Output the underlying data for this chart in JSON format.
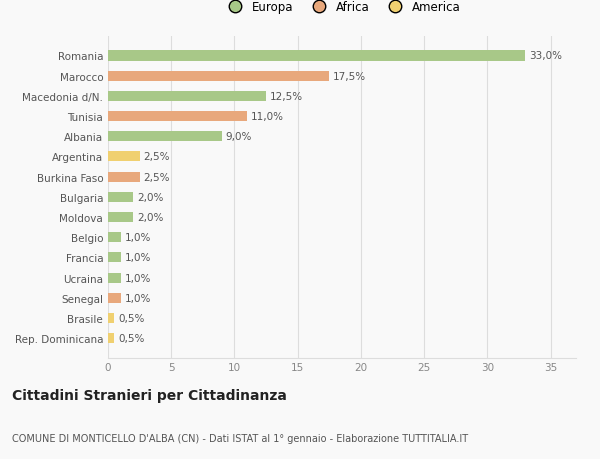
{
  "categories": [
    "Romania",
    "Marocco",
    "Macedonia d/N.",
    "Tunisia",
    "Albania",
    "Argentina",
    "Burkina Faso",
    "Bulgaria",
    "Moldova",
    "Belgio",
    "Francia",
    "Ucraina",
    "Senegal",
    "Brasile",
    "Rep. Dominicana"
  ],
  "values": [
    33.0,
    17.5,
    12.5,
    11.0,
    9.0,
    2.5,
    2.5,
    2.0,
    2.0,
    1.0,
    1.0,
    1.0,
    1.0,
    0.5,
    0.5
  ],
  "labels": [
    "33,0%",
    "17,5%",
    "12,5%",
    "11,0%",
    "9,0%",
    "2,5%",
    "2,5%",
    "2,0%",
    "2,0%",
    "1,0%",
    "1,0%",
    "1,0%",
    "1,0%",
    "0,5%",
    "0,5%"
  ],
  "colors": [
    "#a8c888",
    "#e8a87c",
    "#a8c888",
    "#e8a87c",
    "#a8c888",
    "#f0d070",
    "#e8a87c",
    "#a8c888",
    "#a8c888",
    "#a8c888",
    "#a8c888",
    "#a8c888",
    "#e8a87c",
    "#f0d070",
    "#f0d070"
  ],
  "legend_labels": [
    "Europa",
    "Africa",
    "America"
  ],
  "legend_colors": [
    "#a8c888",
    "#e8a87c",
    "#f0d070"
  ],
  "title": "Cittadini Stranieri per Cittadinanza",
  "subtitle": "COMUNE DI MONTICELLO D'ALBA (CN) - Dati ISTAT al 1° gennaio - Elaborazione TUTTITALIA.IT",
  "xlim": [
    0,
    37
  ],
  "xticks": [
    0,
    5,
    10,
    15,
    20,
    25,
    30,
    35
  ],
  "bg_color": "#f9f9f9",
  "grid_color": "#dddddd",
  "bar_height": 0.5,
  "label_fontsize": 7.5,
  "tick_fontsize": 7.5,
  "title_fontsize": 10,
  "subtitle_fontsize": 7.0
}
